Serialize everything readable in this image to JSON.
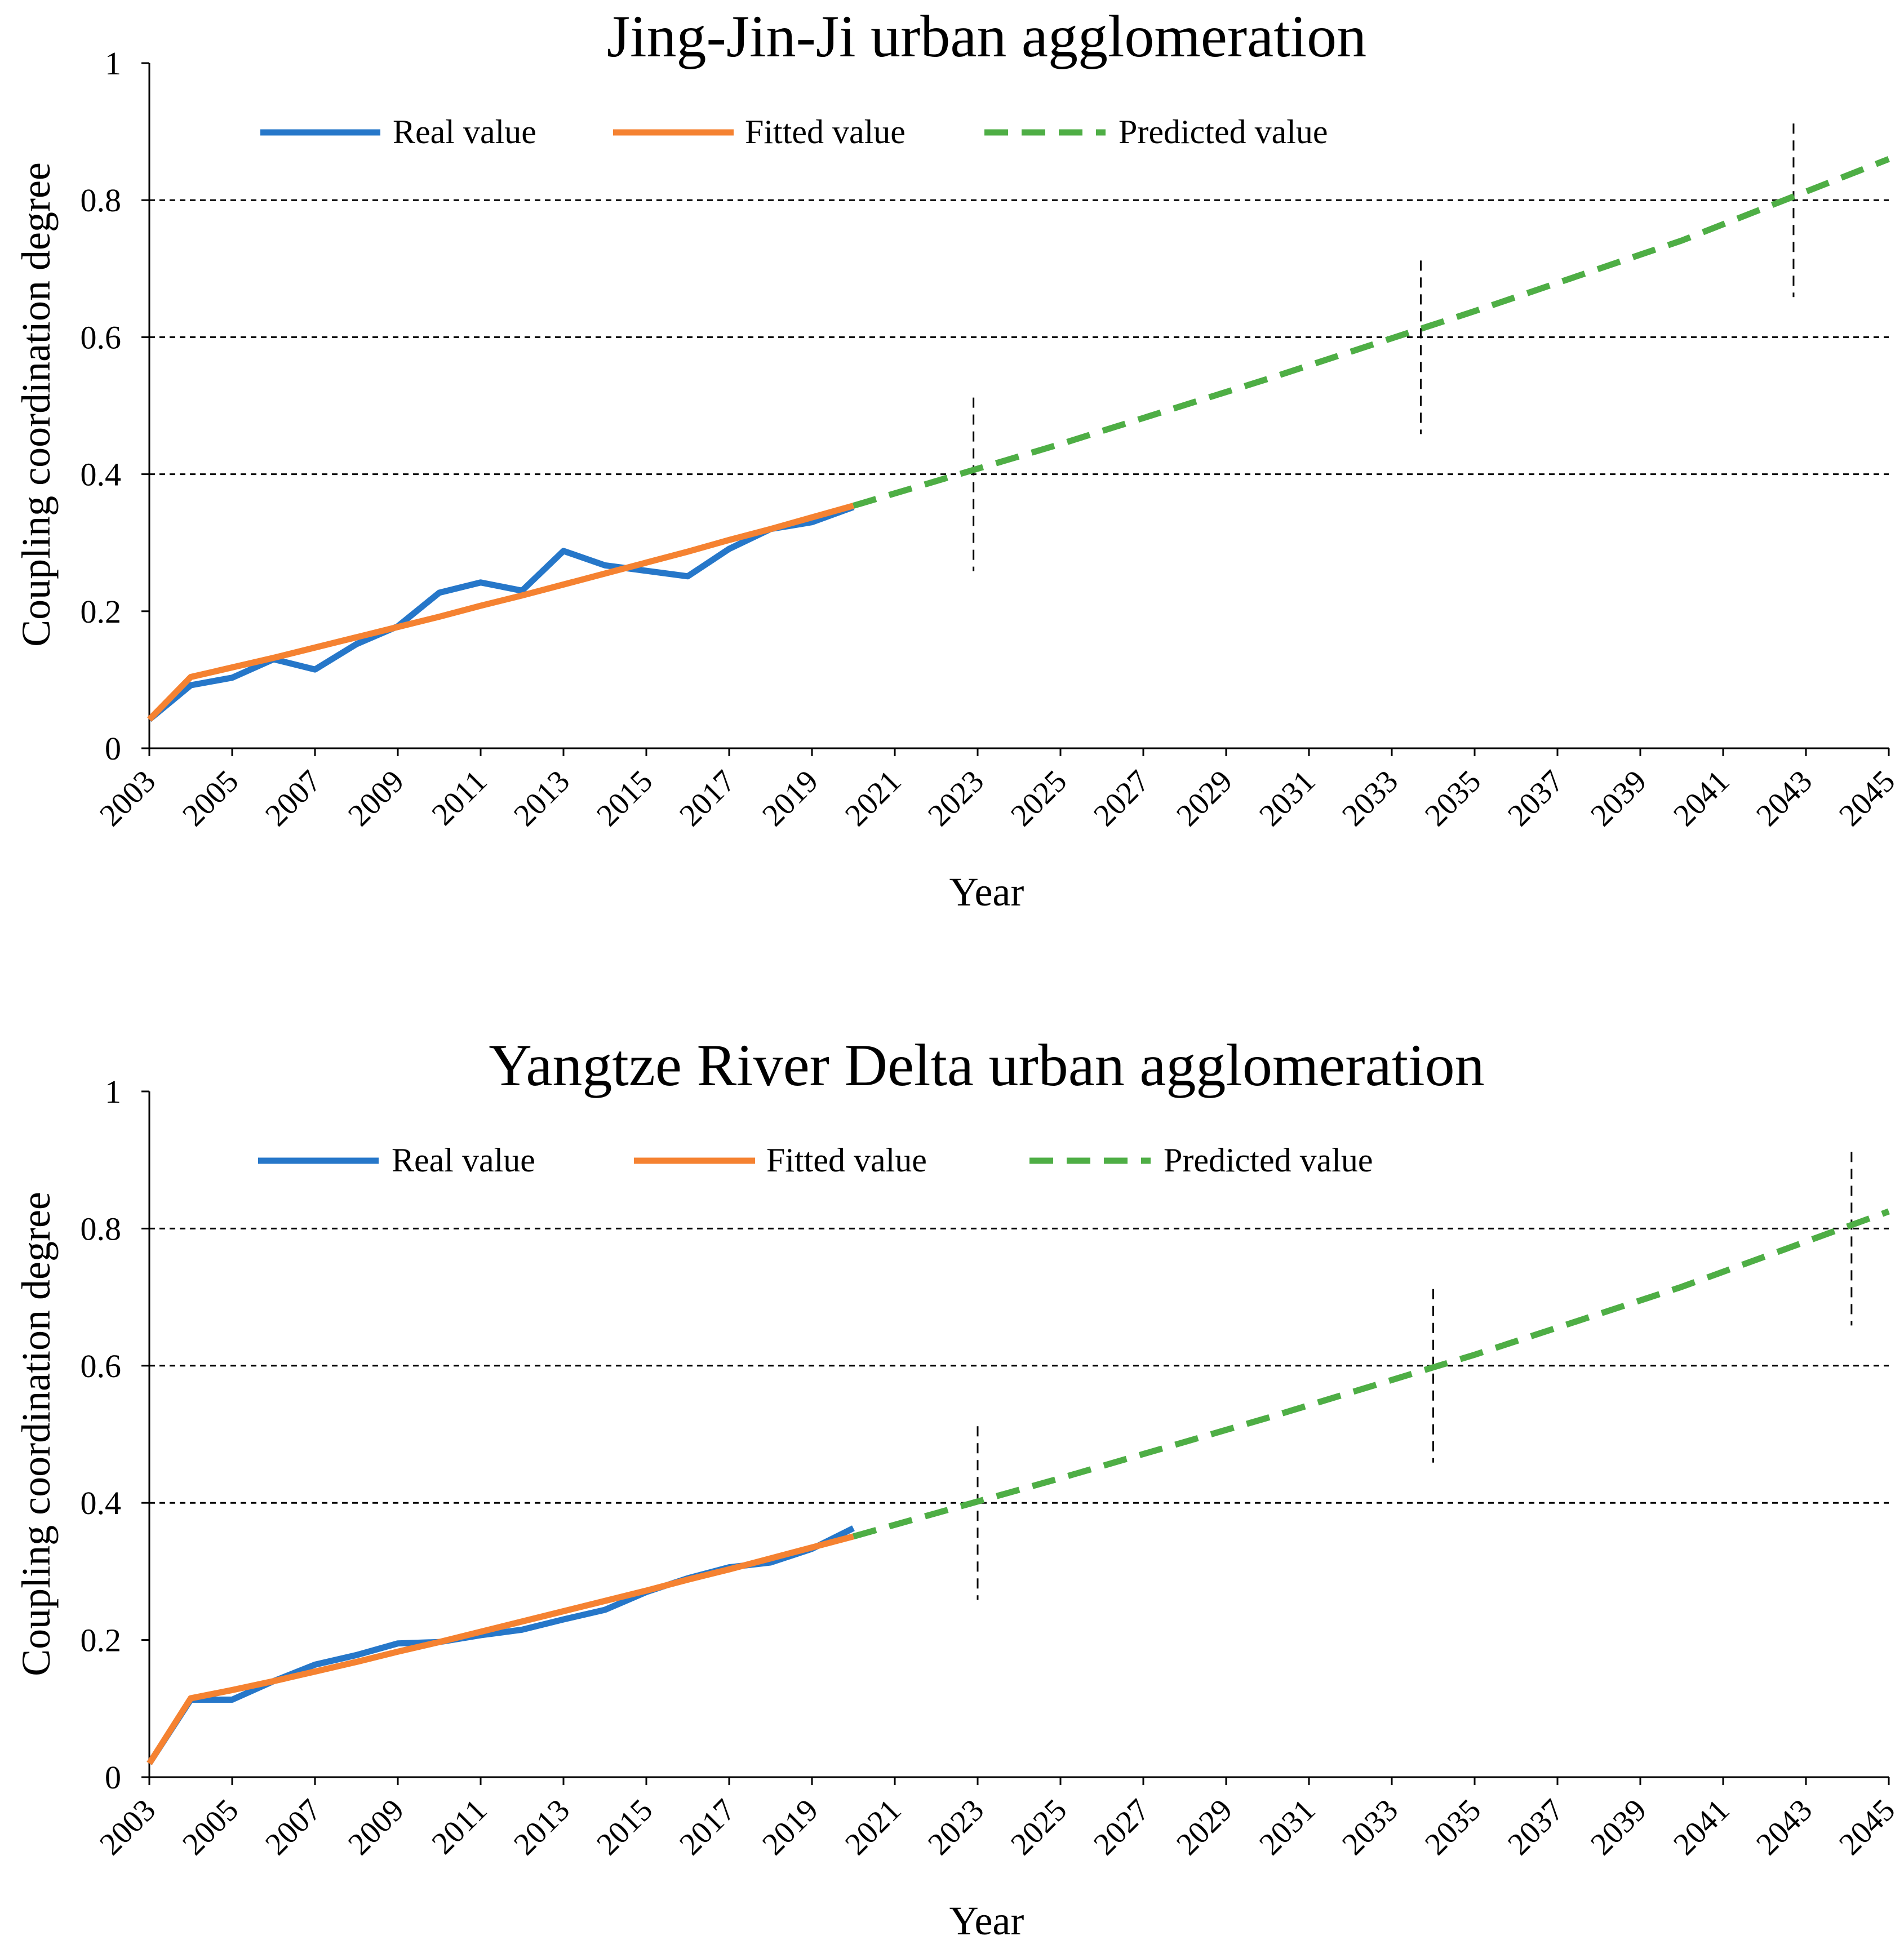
{
  "chart_data": [
    {
      "type": "line",
      "title": "Jing-Jin-Ji urban agglomeration",
      "xlabel": "Year",
      "ylabel": "Coupling coordination degree",
      "xlim": [
        2003,
        2045
      ],
      "ylim": [
        0,
        1
      ],
      "xticks": [
        "2003",
        "2005",
        "2007",
        "2009",
        "2011",
        "2013",
        "2015",
        "2017",
        "2019",
        "2021",
        "2023",
        "2025",
        "2027",
        "2029",
        "2031",
        "2033",
        "2035",
        "2037",
        "2039",
        "2041",
        "2043",
        "2045"
      ],
      "yticks": [
        "0",
        "0.2",
        "0.4",
        "0.6",
        "0.8",
        "1"
      ],
      "gridlines_y": [
        0.4,
        0.6,
        0.8
      ],
      "legend": [
        {
          "key": "real",
          "label": "Real value"
        },
        {
          "key": "fitted",
          "label": "Fitted value"
        },
        {
          "key": "predicted",
          "label": "Predicted value"
        }
      ],
      "legend_position": "top",
      "colors": {
        "real": "#2677c9",
        "fitted": "#f58231",
        "predicted": "#4eae45",
        "grid": "#000000"
      },
      "series": [
        {
          "key": "real",
          "name": "Real value",
          "x": [
            2003,
            2004,
            2005,
            2006,
            2007,
            2008,
            2009,
            2010,
            2011,
            2012,
            2013,
            2014,
            2015,
            2016,
            2017,
            2018,
            2019,
            2020
          ],
          "y": [
            0.042,
            0.092,
            0.103,
            0.13,
            0.115,
            0.152,
            0.178,
            0.227,
            0.242,
            0.23,
            0.288,
            0.267,
            0.259,
            0.251,
            0.291,
            0.32,
            0.33,
            0.352
          ]
        },
        {
          "key": "fitted",
          "name": "Fitted value",
          "x": [
            2003,
            2004,
            2005,
            2006,
            2007,
            2008,
            2009,
            2010,
            2011,
            2012,
            2013,
            2014,
            2015,
            2016,
            2017,
            2018,
            2019,
            2020
          ],
          "y": [
            0.042,
            0.104,
            0.118,
            0.132,
            0.147,
            0.162,
            0.177,
            0.192,
            0.208,
            0.223,
            0.239,
            0.255,
            0.271,
            0.287,
            0.304,
            0.32,
            0.337,
            0.354
          ]
        },
        {
          "key": "predicted",
          "name": "Predicted value",
          "x": [
            2020,
            2025,
            2030,
            2035,
            2040,
            2045
          ],
          "y": [
            0.354,
            0.444,
            0.539,
            0.638,
            0.741,
            0.86
          ]
        }
      ],
      "threshold_markers": [
        {
          "x": 2022.9,
          "y": 0.4
        },
        {
          "x": 2033.7,
          "y": 0.6
        },
        {
          "x": 2042.7,
          "y": 0.8
        }
      ]
    },
    {
      "type": "line",
      "title": "Yangtze River Delta urban agglomeration",
      "xlabel": "Year",
      "ylabel": "Coupling coordination degree",
      "xlim": [
        2003,
        2045
      ],
      "ylim": [
        0,
        1
      ],
      "xticks": [
        "2003",
        "2005",
        "2007",
        "2009",
        "2011",
        "2013",
        "2015",
        "2017",
        "2019",
        "2021",
        "2023",
        "2025",
        "2027",
        "2029",
        "2031",
        "2033",
        "2035",
        "2037",
        "2039",
        "2041",
        "2043",
        "2045"
      ],
      "yticks": [
        "0",
        "0.2",
        "0.4",
        "0.6",
        "0.8",
        "1"
      ],
      "gridlines_y": [
        0.4,
        0.6,
        0.8
      ],
      "legend": [
        {
          "key": "real",
          "label": "Real value"
        },
        {
          "key": "fitted",
          "label": "Fitted value"
        },
        {
          "key": "predicted",
          "label": "Predicted value"
        }
      ],
      "legend_position": "top",
      "colors": {
        "real": "#2677c9",
        "fitted": "#f58231",
        "predicted": "#4eae45",
        "grid": "#000000"
      },
      "series": [
        {
          "key": "real",
          "name": "Real value",
          "x": [
            2003,
            2004,
            2005,
            2006,
            2007,
            2008,
            2009,
            2010,
            2011,
            2012,
            2013,
            2014,
            2015,
            2016,
            2017,
            2018,
            2019,
            2020
          ],
          "y": [
            0.02,
            0.113,
            0.113,
            0.14,
            0.164,
            0.178,
            0.195,
            0.197,
            0.207,
            0.215,
            0.23,
            0.244,
            0.27,
            0.29,
            0.306,
            0.313,
            0.333,
            0.363
          ]
        },
        {
          "key": "fitted",
          "name": "Fitted value",
          "x": [
            2003,
            2004,
            2005,
            2006,
            2007,
            2008,
            2009,
            2010,
            2011,
            2012,
            2013,
            2014,
            2015,
            2016,
            2017,
            2018,
            2019,
            2020
          ],
          "y": [
            0.02,
            0.115,
            0.127,
            0.14,
            0.154,
            0.168,
            0.183,
            0.197,
            0.212,
            0.227,
            0.242,
            0.257,
            0.272,
            0.288,
            0.303,
            0.319,
            0.335,
            0.351
          ]
        },
        {
          "key": "predicted",
          "name": "Predicted value",
          "x": [
            2020,
            2025,
            2030,
            2035,
            2040,
            2045
          ],
          "y": [
            0.351,
            0.436,
            0.524,
            0.616,
            0.715,
            0.825
          ]
        }
      ],
      "threshold_markers": [
        {
          "x": 2023.0,
          "y": 0.4
        },
        {
          "x": 2034.0,
          "y": 0.6
        },
        {
          "x": 2044.1,
          "y": 0.8
        }
      ]
    }
  ]
}
